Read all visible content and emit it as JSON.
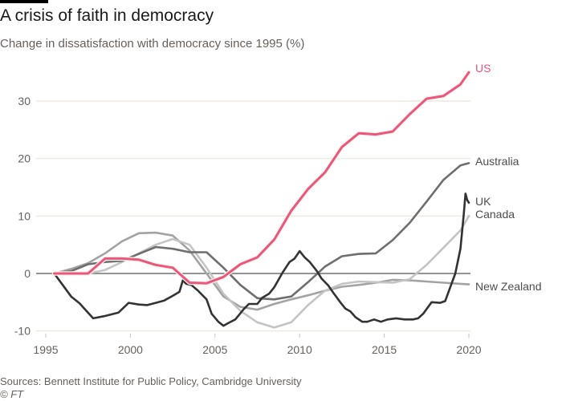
{
  "header": {
    "title": "A crisis of faith in democracy",
    "subtitle": "Change in dissatisfaction with democracy since 1995 (%)"
  },
  "footer": {
    "source": "Sources: Bennett Institute for Public Policy, Cambridge University",
    "credit": "© FT"
  },
  "chart_data": {
    "type": "line",
    "title": "A crisis of faith in democracy",
    "subtitle": "Change in dissatisfaction with democracy since 1995 (%)",
    "xlabel": "",
    "ylabel": "",
    "xlim": [
      1994.5,
      2020.5
    ],
    "ylim": [
      -10,
      35
    ],
    "x_ticks": [
      1995,
      2000,
      2005,
      2010,
      2015,
      2020
    ],
    "x_tick_labels": [
      "1995",
      "2000",
      "2005",
      "2010",
      "2015",
      "2020"
    ],
    "y_ticks": [
      -10,
      0,
      10,
      20,
      30
    ],
    "y_tick_labels": [
      "-10",
      "0",
      "10",
      "20",
      "30"
    ],
    "grid": true,
    "zero_line": true,
    "legend": "direct labels at line ends (right)",
    "series": [
      {
        "name": "New Zealand",
        "color": "#a3a3a3",
        "x": [
          1995.5,
          1996.5,
          1997.5,
          1998.5,
          1999.5,
          2000.5,
          2001.5,
          2002.5,
          2003.5,
          2004.5,
          2005.5,
          2006.5,
          2007.5,
          2008.5,
          2009.5,
          2010.5,
          2011.5,
          2012.5,
          2013.5,
          2014.5,
          2015.5,
          2016.5,
          2017.5,
          2018.5,
          2019.5,
          2020
        ],
        "y": [
          0,
          0.8,
          1.8,
          3.5,
          5.6,
          7.0,
          7.1,
          6.6,
          4.0,
          0.0,
          -4.0,
          -5.8,
          -6.3,
          -5.3,
          -4.5,
          -3.8,
          -3.0,
          -2.3,
          -2.0,
          -1.6,
          -1.1,
          -1.2,
          -1.4,
          -1.6,
          -1.8,
          -1.9
        ]
      },
      {
        "name": "Canada",
        "color": "#c4c4c4",
        "x": [
          1995.5,
          1996.5,
          1997.5,
          1998.5,
          1999.5,
          2000.5,
          2001.5,
          2002.5,
          2003.5,
          2004.5,
          2005.5,
          2006.5,
          2007.5,
          2008.5,
          2009.5,
          2010.5,
          2011.5,
          2012.5,
          2013.5,
          2014.5,
          2015.5,
          2016.5,
          2017.5,
          2018.5,
          2019.5,
          2020
        ],
        "y": [
          0,
          0,
          0,
          0.6,
          2.0,
          3.5,
          5.0,
          6.0,
          5.0,
          1.0,
          -3.5,
          -6.5,
          -8.5,
          -9.4,
          -8.5,
          -5.5,
          -3.0,
          -1.8,
          -1.4,
          -1.5,
          -1.6,
          -1.0,
          1.5,
          4.5,
          7.5,
          10.0
        ]
      },
      {
        "name": "Australia",
        "color": "#6e6e6e",
        "x": [
          1995.5,
          1996.5,
          1997.5,
          1998.5,
          1999.5,
          2000.5,
          2001.5,
          2002.5,
          2003.5,
          2004.5,
          2005.5,
          2006.5,
          2007.5,
          2008.5,
          2009.5,
          2010.5,
          2011.5,
          2012.5,
          2013.5,
          2014.5,
          2015.5,
          2016.5,
          2017.5,
          2018.5,
          2019.5,
          2020
        ],
        "y": [
          0,
          0.4,
          1.6,
          2.0,
          2.2,
          3.4,
          4.6,
          4.3,
          3.7,
          3.7,
          1.0,
          -2.0,
          -4.3,
          -4.5,
          -4.0,
          -1.5,
          1.2,
          3.0,
          3.4,
          3.5,
          5.8,
          8.8,
          12.5,
          16.3,
          18.8,
          19.2
        ]
      },
      {
        "name": "UK",
        "color": "#333333",
        "x": [
          1995.5,
          1996.0,
          1996.5,
          1997.0,
          1997.4,
          1997.8,
          1998.5,
          1999.3,
          1999.9,
          2000.5,
          2001.0,
          2001.5,
          2002.0,
          2002.5,
          2002.9,
          2003.1,
          2003.3,
          2003.6,
          2004.0,
          2004.5,
          2004.8,
          2005.2,
          2005.5,
          2005.8,
          2006.2,
          2006.7,
          2007.0,
          2007.5,
          2007.8,
          2008.2,
          2008.5,
          2009.0,
          2009.4,
          2009.7,
          2010.0,
          2010.3,
          2010.6,
          2011.0,
          2011.3,
          2011.7,
          2012.0,
          2012.4,
          2012.7,
          2013.0,
          2013.3,
          2013.7,
          2014.0,
          2014.4,
          2014.8,
          2015.2,
          2015.7,
          2016.2,
          2016.7,
          2017.0,
          2017.3,
          2017.8,
          2018.3,
          2018.6,
          2018.9,
          2019.2,
          2019.5,
          2019.7,
          2019.8,
          2019.9,
          2020.0
        ],
        "y": [
          0,
          -2.0,
          -4.0,
          -5.2,
          -6.5,
          -7.8,
          -7.4,
          -6.8,
          -5.1,
          -5.4,
          -5.5,
          -5.1,
          -4.7,
          -3.9,
          -3.2,
          -1.2,
          -1.8,
          -2.0,
          -3.0,
          -4.5,
          -7.0,
          -8.4,
          -9.1,
          -8.6,
          -8.0,
          -6.2,
          -5.3,
          -5.3,
          -4.2,
          -3.5,
          -2.4,
          0.2,
          2.0,
          2.6,
          3.9,
          2.8,
          2.0,
          0.5,
          -0.9,
          -2.1,
          -3.4,
          -5.0,
          -6.1,
          -6.6,
          -7.6,
          -8.4,
          -8.4,
          -8.0,
          -8.4,
          -8.0,
          -7.8,
          -8.0,
          -8.0,
          -7.8,
          -7.0,
          -5.0,
          -5.1,
          -4.8,
          -2.4,
          0.0,
          4.3,
          10.4,
          13.9,
          12.8,
          12.3
        ]
      },
      {
        "name": "US",
        "color": "#e8577e",
        "x": [
          1995.5,
          1996.5,
          1997.5,
          1998.5,
          1999.5,
          2000.5,
          2001.5,
          2002.5,
          2003.5,
          2004.5,
          2005.5,
          2006.5,
          2007.5,
          2008.5,
          2009.5,
          2010.5,
          2011.5,
          2012.5,
          2013.5,
          2014.5,
          2015.5,
          2016.5,
          2017.5,
          2018.5,
          2019.5,
          2020
        ],
        "y": [
          0,
          0,
          0,
          2.6,
          2.6,
          2.4,
          1.5,
          1.0,
          -1.6,
          -1.7,
          -0.6,
          1.6,
          2.8,
          5.9,
          10.9,
          14.7,
          17.6,
          22.0,
          24.4,
          24.2,
          24.7,
          27.7,
          30.4,
          30.9,
          32.9,
          35.0
        ]
      }
    ]
  }
}
